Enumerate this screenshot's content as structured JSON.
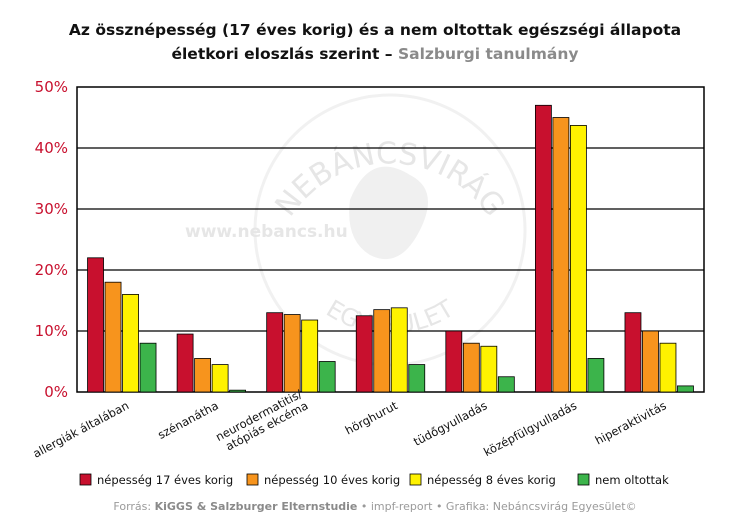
{
  "header": {
    "title_line1": "Az össznépesség (17 éves korig) és a nem oltottak egészségi állapota",
    "title_line2": "életkori eloszlás szerint – ",
    "subtitle": "Salzburgi tanulmány"
  },
  "watermark": {
    "arc_text": "NEBÁNCSVIRÁG",
    "arc_text_bottom": "EGYESÜLET",
    "url": "www.nebancs.hu"
  },
  "source": {
    "prefix": "Forrás: ",
    "bold": "KiGGS & Salzburger Elternstudie",
    "suffix": " • impf-report • Grafika: Nebáncsvirág Egyesület©"
  },
  "chart_data": {
    "type": "bar",
    "categories": [
      "allergiák általában",
      "szénanátha",
      "neurodermatitis/\natópiás ekcéma",
      "hörghurut",
      "tüdőgyulladás",
      "középfülgyulladás",
      "hiperaktivitás"
    ],
    "series": [
      {
        "name": "népesség 17 éves korig",
        "color": "#c8102e",
        "values": [
          22,
          9.5,
          13,
          12.5,
          10,
          47,
          13
        ]
      },
      {
        "name": "népesség 10 éves korig",
        "color": "#f7941d",
        "values": [
          18,
          5.5,
          12.7,
          13.5,
          8,
          45,
          10
        ]
      },
      {
        "name": "népesség 8 éves korig",
        "color": "#fff200",
        "values": [
          16,
          4.5,
          11.8,
          13.8,
          7.5,
          43.7,
          8
        ]
      },
      {
        "name": "nem oltottak",
        "color": "#3cb44b",
        "values": [
          8,
          0.3,
          5,
          4.5,
          2.5,
          5.5,
          1
        ]
      }
    ],
    "ylim": [
      0,
      50
    ],
    "yticks": [
      "0%",
      "10%",
      "20%",
      "30%",
      "40%",
      "50%"
    ],
    "grid": true,
    "legend_position": "bottom"
  }
}
